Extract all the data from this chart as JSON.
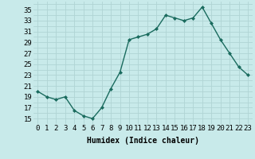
{
  "x": [
    0,
    1,
    2,
    3,
    4,
    5,
    6,
    7,
    8,
    9,
    10,
    11,
    12,
    13,
    14,
    15,
    16,
    17,
    18,
    19,
    20,
    21,
    22,
    23
  ],
  "y": [
    20,
    19,
    18.5,
    19,
    16.5,
    15.5,
    15,
    17,
    20.5,
    23.5,
    29.5,
    30,
    30.5,
    31.5,
    34,
    33.5,
    33,
    33.5,
    35.5,
    32.5,
    29.5,
    27,
    24.5,
    23
  ],
  "line_color": "#1a6b5e",
  "marker": "D",
  "marker_size": 2.0,
  "line_width": 1.0,
  "bg_color": "#c8eaea",
  "grid_color": "#b0d4d4",
  "xlabel": "Humidex (Indice chaleur)",
  "xlabel_fontsize": 7,
  "xlabel_fontweight": "bold",
  "yticks": [
    15,
    17,
    19,
    21,
    23,
    25,
    27,
    29,
    31,
    33,
    35
  ],
  "xticks": [
    0,
    1,
    2,
    3,
    4,
    5,
    6,
    7,
    8,
    9,
    10,
    11,
    12,
    13,
    14,
    15,
    16,
    17,
    18,
    19,
    20,
    21,
    22,
    23
  ],
  "ylim": [
    14,
    36.5
  ],
  "xlim": [
    -0.5,
    23.5
  ],
  "tick_fontsize": 6.5
}
